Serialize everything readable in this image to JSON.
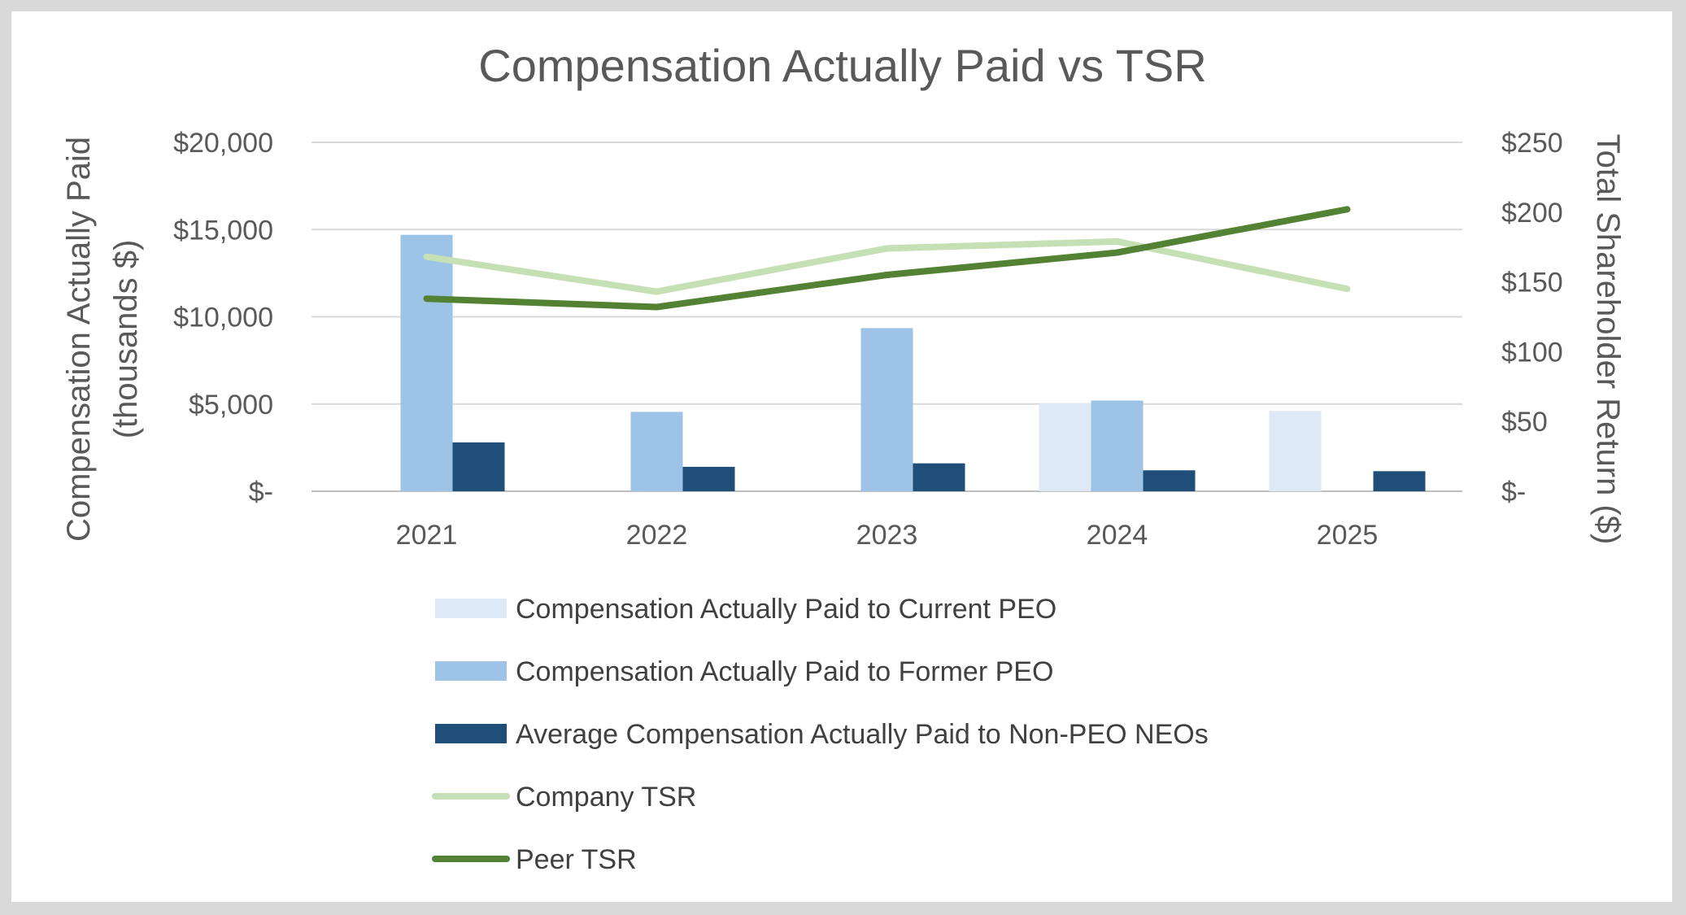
{
  "chart_data": {
    "type": "bar",
    "title": "Compensation Actually Paid vs TSR",
    "categories": [
      "2021",
      "2022",
      "2023",
      "2024",
      "2025"
    ],
    "y_left": {
      "label_line1": "Compensation Actually Paid",
      "label_line2": "(thousands $)",
      "range": [
        0,
        20000
      ],
      "ticks": [
        0,
        5000,
        10000,
        15000,
        20000
      ],
      "tick_labels": [
        "$-",
        "$5,000",
        "$10,000",
        "$15,000",
        "$20,000"
      ]
    },
    "y_right": {
      "label": "Total Shareholder Return ($)",
      "range": [
        0,
        250
      ],
      "ticks": [
        0,
        50,
        100,
        150,
        200,
        250
      ],
      "tick_labels": [
        "$-",
        "$50",
        "$100",
        "$150",
        "$200",
        "$250"
      ]
    },
    "grid": true,
    "legend_position": "bottom",
    "bar_series": [
      {
        "name": "Compensation Actually Paid to Current PEO",
        "color": "#dde9f6",
        "values": [
          null,
          null,
          null,
          5050,
          4600
        ]
      },
      {
        "name": "Compensation Actually Paid to Former PEO",
        "color": "#9dc3e6",
        "values": [
          14700,
          4550,
          9350,
          5200,
          null
        ]
      },
      {
        "name": "Average Compensation Actually Paid to Non-PEO NEOs",
        "color": "#1f4e79",
        "values": [
          2800,
          1400,
          1600,
          1200,
          1150
        ]
      }
    ],
    "line_series": [
      {
        "name": "Company TSR",
        "color": "#c5e0b4",
        "axis": "right",
        "values": [
          168,
          143,
          174,
          179,
          145
        ]
      },
      {
        "name": "Peer TSR",
        "color": "#548235",
        "axis": "right",
        "values": [
          138,
          132,
          155,
          171,
          202
        ]
      }
    ]
  }
}
